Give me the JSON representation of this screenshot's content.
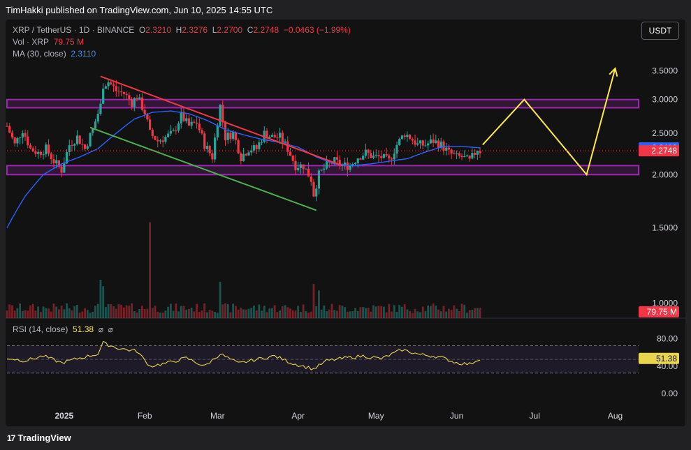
{
  "header": {
    "publisher_text": "TimHakki published on TradingView.com, Jun 10, 2025 14:55 UTC"
  },
  "legend": {
    "symbol": "XRP / TetherUS · 1D · BINANCE",
    "open_label": "O",
    "open": "2.3210",
    "high_label": "H",
    "high": "2.3276",
    "low_label": "L",
    "low": "2.2700",
    "close_label": "C",
    "close": "2.2748",
    "change": "−0.0463 (−1.99%)",
    "vol_label": "Vol · XRP",
    "vol_value": "79.75 M",
    "ma_label": "MA (30, close)",
    "ma_value": "2.3110"
  },
  "rsi_legend": {
    "label": "RSI (14, close)",
    "value": "51.38",
    "icons": [
      "eye-off-icon",
      "eye-off-icon"
    ],
    "icon_glyph": "⌀"
  },
  "currency_button": "USDT",
  "footer": {
    "brand": "TradingView",
    "logo_glyph": "17"
  },
  "colors": {
    "background": "#121212",
    "bull": "#26a69a",
    "bear": "#f23645",
    "ma": "#2962ff",
    "zone": "#9c27b0",
    "resistance_line": "#f23645",
    "support_line": "#4caf50",
    "projection": "#ffeb3b",
    "rsi": "#e8d44d"
  },
  "chart_data": {
    "type": "candlestick",
    "price_ticks": [
      "3.5000",
      "3.0000",
      "2.5000",
      "2.0000",
      "1.5000",
      "1.0000"
    ],
    "price_tick_values": [
      3.5,
      3.0,
      2.5,
      2.0,
      1.5,
      1.0
    ],
    "ylim": [
      0.95,
      3.9
    ],
    "log_scale": true,
    "x_ticks": [
      {
        "label": "2025",
        "date": "2025-01-01",
        "bold": true
      },
      {
        "label": "Feb",
        "date": "2025-02-01",
        "bold": false
      },
      {
        "label": "Mar",
        "date": "2025-03-01",
        "bold": false
      },
      {
        "label": "Apr",
        "date": "2025-04-01",
        "bold": false
      },
      {
        "label": "May",
        "date": "2025-05-01",
        "bold": false
      },
      {
        "label": "Jun",
        "date": "2025-06-01",
        "bold": false
      },
      {
        "label": "Jul",
        "date": "2025-07-01",
        "bold": false
      },
      {
        "label": "Aug",
        "date": "2025-08-01",
        "bold": false
      }
    ],
    "xlim": [
      "2024-12-10",
      "2025-08-10"
    ],
    "price_labels": {
      "ma": {
        "text": "2.3110",
        "value": 2.311
      },
      "last": {
        "text": "2.2748",
        "value": 2.2748
      },
      "volume": {
        "text": "79.75 M"
      }
    },
    "anchors": [
      [
        "2024-12-10",
        2.6
      ],
      [
        "2024-12-13",
        2.35
      ],
      [
        "2024-12-16",
        2.55
      ],
      [
        "2024-12-19",
        2.3
      ],
      [
        "2024-12-22",
        2.25
      ],
      [
        "2024-12-25",
        2.3
      ],
      [
        "2024-12-28",
        2.15
      ],
      [
        "2024-12-31",
        2.05
      ],
      [
        "2025-01-03",
        2.35
      ],
      [
        "2025-01-06",
        2.45
      ],
      [
        "2025-01-09",
        2.3
      ],
      [
        "2025-01-12",
        2.55
      ],
      [
        "2025-01-15",
        2.9
      ],
      [
        "2025-01-16",
        3.25
      ],
      [
        "2025-01-18",
        3.3
      ],
      [
        "2025-01-21",
        3.15
      ],
      [
        "2025-01-24",
        3.1
      ],
      [
        "2025-01-27",
        2.95
      ],
      [
        "2025-01-29",
        3.05
      ],
      [
        "2025-02-01",
        2.8
      ],
      [
        "2025-02-03",
        2.5
      ],
      [
        "2025-02-06",
        2.4
      ],
      [
        "2025-02-09",
        2.45
      ],
      [
        "2025-02-12",
        2.5
      ],
      [
        "2025-02-15",
        2.75
      ],
      [
        "2025-02-18",
        2.6
      ],
      [
        "2025-02-21",
        2.65
      ],
      [
        "2025-02-24",
        2.35
      ],
      [
        "2025-02-27",
        2.2
      ],
      [
        "2025-03-02",
        2.9
      ],
      [
        "2025-03-04",
        2.45
      ],
      [
        "2025-03-07",
        2.5
      ],
      [
        "2025-03-10",
        2.2
      ],
      [
        "2025-03-13",
        2.3
      ],
      [
        "2025-03-16",
        2.3
      ],
      [
        "2025-03-19",
        2.5
      ],
      [
        "2025-03-22",
        2.45
      ],
      [
        "2025-03-25",
        2.45
      ],
      [
        "2025-03-28",
        2.3
      ],
      [
        "2025-03-31",
        2.1
      ],
      [
        "2025-04-03",
        2.1
      ],
      [
        "2025-04-06",
        1.95
      ],
      [
        "2025-04-07",
        1.8
      ],
      [
        "2025-04-09",
        2.0
      ],
      [
        "2025-04-12",
        2.1
      ],
      [
        "2025-04-15",
        2.15
      ],
      [
        "2025-04-18",
        2.1
      ],
      [
        "2025-04-21",
        2.1
      ],
      [
        "2025-04-24",
        2.2
      ],
      [
        "2025-04-27",
        2.25
      ],
      [
        "2025-04-30",
        2.2
      ],
      [
        "2025-05-03",
        2.2
      ],
      [
        "2025-05-06",
        2.15
      ],
      [
        "2025-05-09",
        2.35
      ],
      [
        "2025-05-12",
        2.5
      ],
      [
        "2025-05-14",
        2.45
      ],
      [
        "2025-05-17",
        2.35
      ],
      [
        "2025-05-20",
        2.35
      ],
      [
        "2025-05-23",
        2.4
      ],
      [
        "2025-05-26",
        2.35
      ],
      [
        "2025-05-29",
        2.25
      ],
      [
        "2025-06-01",
        2.2
      ],
      [
        "2025-06-03",
        2.2
      ],
      [
        "2025-06-06",
        2.15
      ],
      [
        "2025-06-08",
        2.25
      ],
      [
        "2025-06-09",
        2.3
      ],
      [
        "2025-06-10",
        2.2748
      ]
    ],
    "ma_anchors": [
      [
        "2024-12-10",
        1.5
      ],
      [
        "2024-12-17",
        1.78
      ],
      [
        "2024-12-24",
        2.0
      ],
      [
        "2024-12-31",
        2.12
      ],
      [
        "2025-01-07",
        2.2
      ],
      [
        "2025-01-14",
        2.3
      ],
      [
        "2025-01-21",
        2.5
      ],
      [
        "2025-01-28",
        2.7
      ],
      [
        "2025-02-04",
        2.8
      ],
      [
        "2025-02-11",
        2.82
      ],
      [
        "2025-02-18",
        2.78
      ],
      [
        "2025-02-25",
        2.68
      ],
      [
        "2025-03-04",
        2.55
      ],
      [
        "2025-03-11",
        2.48
      ],
      [
        "2025-03-18",
        2.42
      ],
      [
        "2025-03-25",
        2.38
      ],
      [
        "2025-04-01",
        2.32
      ],
      [
        "2025-04-08",
        2.2
      ],
      [
        "2025-04-15",
        2.12
      ],
      [
        "2025-04-22",
        2.1
      ],
      [
        "2025-04-29",
        2.12
      ],
      [
        "2025-05-06",
        2.15
      ],
      [
        "2025-05-13",
        2.18
      ],
      [
        "2025-05-20",
        2.26
      ],
      [
        "2025-05-27",
        2.33
      ],
      [
        "2025-06-03",
        2.33
      ],
      [
        "2025-06-10",
        2.311
      ]
    ],
    "volume_peaks": [
      [
        "2025-01-15",
        1.8
      ],
      [
        "2025-01-16",
        1.5
      ],
      [
        "2025-02-03",
        4.5
      ],
      [
        "2025-03-02",
        1.7
      ],
      [
        "2025-04-07",
        1.6
      ],
      [
        "2025-04-09",
        1.3
      ]
    ],
    "zones": [
      {
        "name": "resistance-zone",
        "from": 2.87,
        "to": 3.0
      },
      {
        "name": "support-zone",
        "from": 2.0,
        "to": 2.1
      }
    ],
    "trendlines": [
      {
        "name": "resistance-trendline",
        "from": [
          "2025-01-15",
          3.4
        ],
        "to": [
          "2025-04-18",
          2.1
        ],
        "color": "#f23645"
      },
      {
        "name": "support-trendline",
        "from": [
          "2025-01-11",
          2.58
        ],
        "to": [
          "2025-04-08",
          1.65
        ],
        "color": "#4caf50"
      }
    ],
    "projection": {
      "points": [
        [
          "2025-06-11",
          2.35
        ],
        [
          "2025-06-27",
          3.0
        ],
        [
          "2025-07-21",
          2.0
        ],
        [
          "2025-08-01",
          3.55
        ]
      ],
      "color": "#ffeb3b"
    },
    "rsi": {
      "levels": [
        70,
        50,
        30
      ],
      "ticks": [
        "80.00",
        "40.00",
        "0.00"
      ],
      "tick_values": [
        80,
        40,
        0
      ],
      "ylim": [
        -12,
        100
      ],
      "last": "51.38",
      "anchors": [
        [
          "2024-12-10",
          52
        ],
        [
          "2024-12-17",
          48
        ],
        [
          "2024-12-24",
          55
        ],
        [
          "2024-12-31",
          45
        ],
        [
          "2025-01-07",
          52
        ],
        [
          "2025-01-14",
          58
        ],
        [
          "2025-01-16",
          74
        ],
        [
          "2025-01-22",
          66
        ],
        [
          "2025-01-29",
          62
        ],
        [
          "2025-02-03",
          40
        ],
        [
          "2025-02-10",
          45
        ],
        [
          "2025-02-17",
          52
        ],
        [
          "2025-02-24",
          40
        ],
        [
          "2025-03-02",
          58
        ],
        [
          "2025-03-09",
          44
        ],
        [
          "2025-03-16",
          50
        ],
        [
          "2025-03-23",
          55
        ],
        [
          "2025-03-30",
          44
        ],
        [
          "2025-04-07",
          36
        ],
        [
          "2025-04-12",
          48
        ],
        [
          "2025-04-19",
          52
        ],
        [
          "2025-04-26",
          55
        ],
        [
          "2025-05-03",
          51
        ],
        [
          "2025-05-11",
          64
        ],
        [
          "2025-05-18",
          57
        ],
        [
          "2025-05-25",
          54
        ],
        [
          "2025-06-01",
          45
        ],
        [
          "2025-06-06",
          43
        ],
        [
          "2025-06-10",
          51.38
        ]
      ]
    }
  }
}
